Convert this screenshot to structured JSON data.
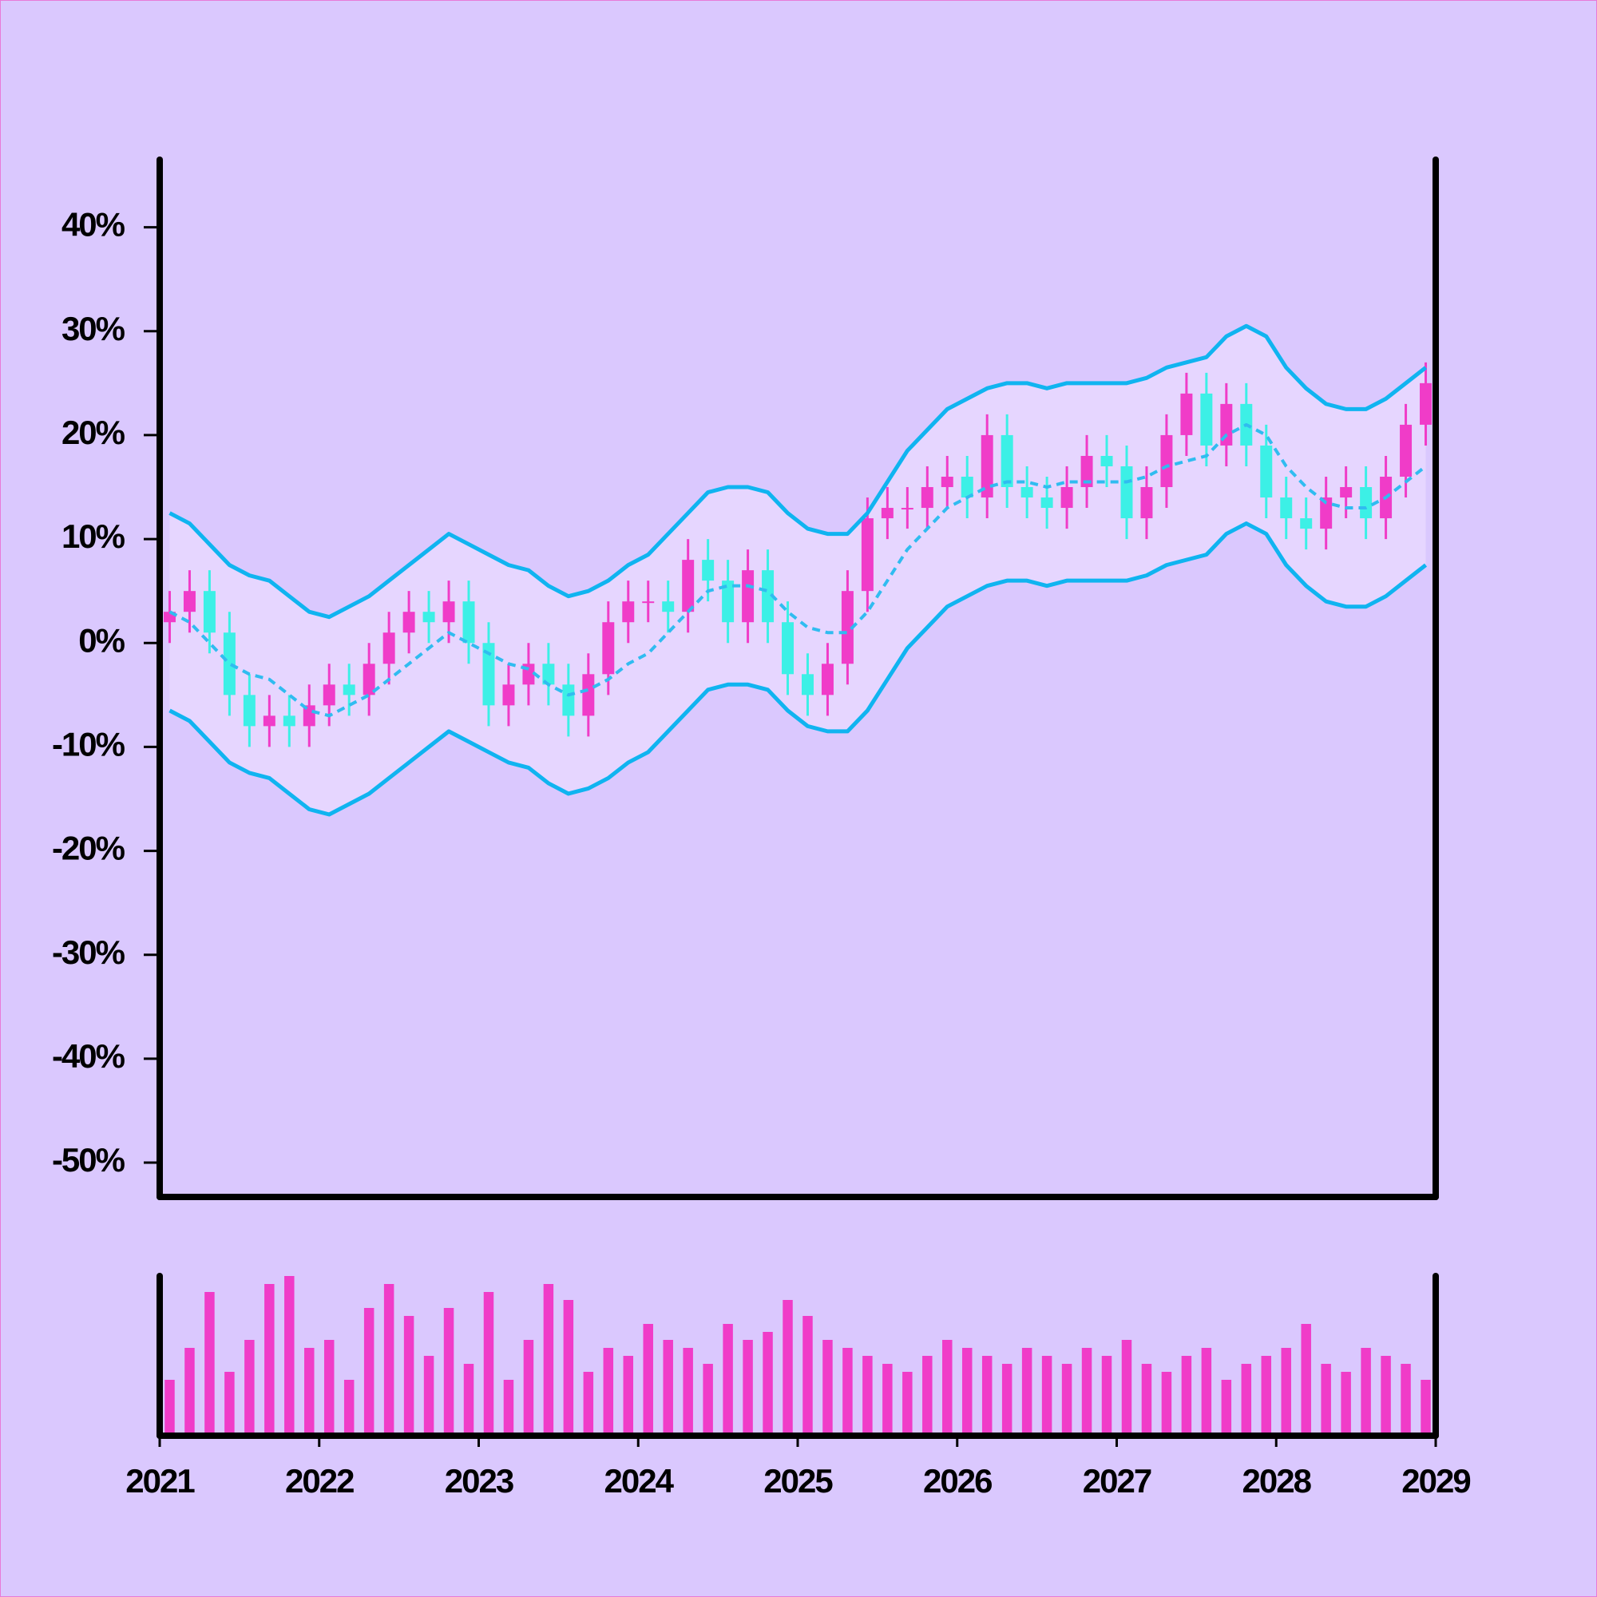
{
  "chart_data": {
    "type": "candlestick",
    "x": [
      2021.0625,
      2021.1875,
      2021.3125,
      2021.4375,
      2021.5625,
      2021.6875,
      2021.8125,
      2021.9375,
      2022.0625,
      2022.1875,
      2022.3125,
      2022.4375,
      2022.5625,
      2022.6875,
      2022.8125,
      2022.9375,
      2023.0625,
      2023.1875,
      2023.3125,
      2023.4375,
      2023.5625,
      2023.6875,
      2023.8125,
      2023.9375,
      2024.0625,
      2024.1875,
      2024.3125,
      2024.4375,
      2024.5625,
      2024.6875,
      2024.8125,
      2024.9375,
      2025.0625,
      2025.1875,
      2025.3125,
      2025.4375,
      2025.5625,
      2025.6875,
      2025.8125,
      2025.9375,
      2026.0625,
      2026.1875,
      2026.3125,
      2026.4375,
      2026.5625,
      2026.6875,
      2026.8125,
      2026.9375,
      2027.0625,
      2027.1875,
      2027.3125,
      2027.4375,
      2027.5625,
      2027.6875,
      2027.8125,
      2027.9375,
      2028.0625,
      2028.1875,
      2028.3125,
      2028.4375,
      2028.5625,
      2028.6875,
      2028.8125,
      2028.9375
    ],
    "open": [
      2,
      3,
      5,
      1,
      -5,
      -8,
      -7,
      -8,
      -6,
      -4,
      -5,
      -2,
      1,
      3,
      2,
      4,
      0,
      -6,
      -4,
      -2,
      -4,
      -7,
      -3,
      2,
      4,
      4,
      3,
      8,
      6,
      2,
      7,
      2,
      -3,
      -5,
      -2,
      5,
      12,
      13,
      13,
      15,
      16,
      14,
      20,
      15,
      14,
      13,
      15,
      18,
      17,
      12,
      15,
      20,
      24,
      19,
      23,
      19,
      14,
      12,
      11,
      14,
      15,
      12,
      16,
      21
    ],
    "high": [
      5,
      7,
      7,
      3,
      -3,
      -5,
      -5,
      -4,
      -2,
      -2,
      0,
      3,
      5,
      5,
      6,
      6,
      2,
      -2,
      0,
      0,
      -2,
      -1,
      4,
      6,
      6,
      6,
      10,
      10,
      8,
      9,
      9,
      4,
      -1,
      0,
      7,
      14,
      15,
      15,
      17,
      18,
      18,
      22,
      22,
      17,
      16,
      17,
      20,
      20,
      19,
      17,
      22,
      26,
      26,
      25,
      25,
      21,
      16,
      14,
      16,
      17,
      17,
      18,
      23,
      27
    ],
    "low": [
      0,
      1,
      -1,
      -7,
      -10,
      -10,
      -10,
      -10,
      -8,
      -7,
      -7,
      -4,
      -1,
      0,
      0,
      -2,
      -8,
      -8,
      -6,
      -6,
      -9,
      -9,
      -5,
      0,
      2,
      1,
      1,
      4,
      0,
      0,
      0,
      -5,
      -7,
      -7,
      -4,
      3,
      10,
      11,
      11,
      13,
      12,
      12,
      13,
      12,
      11,
      11,
      13,
      15,
      10,
      10,
      13,
      18,
      17,
      17,
      17,
      12,
      10,
      9,
      9,
      12,
      10,
      10,
      14,
      19
    ],
    "close": [
      3,
      5,
      1,
      -5,
      -8,
      -7,
      -8,
      -6,
      -4,
      -5,
      -2,
      1,
      3,
      2,
      4,
      0,
      -6,
      -4,
      -2,
      -4,
      -7,
      -3,
      2,
      4,
      4,
      3,
      8,
      6,
      2,
      7,
      2,
      -3,
      -5,
      -2,
      5,
      12,
      13,
      13,
      15,
      16,
      14,
      20,
      15,
      14,
      13,
      15,
      18,
      17,
      12,
      15,
      20,
      24,
      19,
      23,
      19,
      14,
      12,
      11,
      14,
      15,
      12,
      16,
      21,
      25
    ],
    "upper": [
      12.5,
      11.5,
      9.5,
      7.5,
      6.5,
      6,
      4.5,
      3,
      2.5,
      3.5,
      4.5,
      6,
      7.5,
      9,
      10.5,
      9.5,
      8.5,
      7.5,
      7,
      5.5,
      4.5,
      5,
      6,
      7.5,
      8.5,
      10.5,
      12.5,
      14.5,
      15,
      15,
      14.5,
      12.5,
      11,
      10.5,
      10.5,
      12.5,
      15.5,
      18.5,
      20.5,
      22.5,
      23.5,
      24.5,
      25,
      25,
      24.5,
      25,
      25,
      25,
      25,
      25.5,
      26.5,
      27,
      27.5,
      29.5,
      30.5,
      29.5,
      26.5,
      24.5,
      23,
      22.5,
      22.5,
      23.5,
      25,
      26.5
    ],
    "middle": [
      3,
      2,
      0,
      -2,
      -3,
      -3.5,
      -5,
      -6.5,
      -7,
      -6,
      -5,
      -3.5,
      -2,
      -0.5,
      1,
      0,
      -1,
      -2,
      -2.5,
      -4,
      -5,
      -4.5,
      -3.5,
      -2,
      -1,
      1,
      3,
      5,
      5.5,
      5.5,
      5,
      3,
      1.5,
      1,
      1,
      3,
      6,
      9,
      11,
      13,
      14,
      15,
      15.5,
      15.5,
      15,
      15.5,
      15.5,
      15.5,
      15.5,
      16,
      17,
      17.5,
      18,
      20,
      21,
      20,
      17,
      15,
      13.5,
      13,
      13,
      14,
      15.5,
      17
    ],
    "lower": [
      -6.5,
      -7.5,
      -9.5,
      -11.5,
      -12.5,
      -13,
      -14.5,
      -16,
      -16.5,
      -15.5,
      -14.5,
      -13,
      -11.5,
      -10,
      -8.5,
      -9.5,
      -10.5,
      -11.5,
      -12,
      -13.5,
      -14.5,
      -14,
      -13,
      -11.5,
      -10.5,
      -8.5,
      -6.5,
      -4.5,
      -4,
      -4,
      -4.5,
      -6.5,
      -8,
      -8.5,
      -8.5,
      -6.5,
      -3.5,
      -0.5,
      1.5,
      3.5,
      4.5,
      5.5,
      6,
      6,
      5.5,
      6,
      6,
      6,
      6,
      6.5,
      7.5,
      8,
      8.5,
      10.5,
      11.5,
      10.5,
      7.5,
      5.5,
      4,
      3.5,
      3.5,
      4.5,
      6,
      7.5
    ],
    "up_color": "#f03cc8",
    "down_color": "#3cf0e6",
    "band_color": "#10b4f0",
    "band_fill": "#e6d6ff",
    "volume": {
      "values": [
        35,
        55,
        90,
        40,
        60,
        95,
        100,
        55,
        60,
        35,
        80,
        95,
        75,
        50,
        80,
        45,
        90,
        35,
        60,
        95,
        85,
        40,
        55,
        50,
        70,
        60,
        55,
        45,
        70,
        60,
        65,
        85,
        75,
        60,
        55,
        50,
        45,
        40,
        50,
        60,
        55,
        50,
        45,
        55,
        50,
        45,
        55,
        50,
        60,
        45,
        40,
        50,
        55,
        35,
        45,
        50,
        55,
        70,
        45,
        40,
        55,
        50,
        45,
        35
      ],
      "color": "#f03cc8",
      "ylim": [
        0,
        100
      ]
    },
    "xlim": [
      2021,
      2029
    ],
    "xticks": [
      2021,
      2022,
      2023,
      2024,
      2025,
      2026,
      2027,
      2028,
      2029
    ],
    "ylim": [
      -53.3,
      46.5
    ],
    "yticks": [
      {
        "value": -50,
        "label": "-50%"
      },
      {
        "value": -40,
        "label": "-40%"
      },
      {
        "value": -30,
        "label": "-30%"
      },
      {
        "value": -20,
        "label": "-20%"
      },
      {
        "value": -10,
        "label": "-10%"
      },
      {
        "value": 0,
        "label": "0%"
      },
      {
        "value": 10,
        "label": "10%"
      },
      {
        "value": 20,
        "label": "20%"
      },
      {
        "value": 30,
        "label": "30%"
      },
      {
        "value": 40,
        "label": "40%"
      }
    ]
  }
}
